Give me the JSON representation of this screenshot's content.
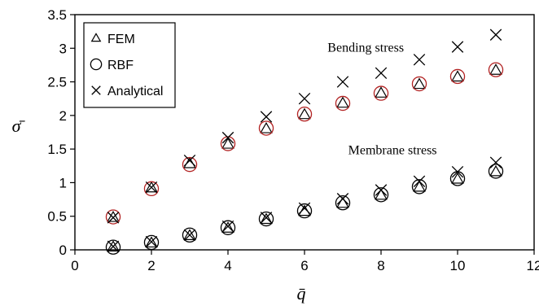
{
  "chart_data": {
    "type": "scatter",
    "xlabel": "q̄",
    "ylabel": "σ̄",
    "xlim": [
      0,
      12
    ],
    "ylim": [
      0,
      3.5
    ],
    "xticks": [
      "0",
      "2",
      "4",
      "6",
      "8",
      "10",
      "12"
    ],
    "yticks": [
      "0",
      "0.5",
      "1",
      "1.5",
      "2",
      "2.5",
      "3",
      "3.5"
    ],
    "grid": false,
    "legend_position": "top-left",
    "legend": [
      {
        "marker": "triangle",
        "label": "FEM"
      },
      {
        "marker": "circle",
        "label": "RBF"
      },
      {
        "marker": "cross",
        "label": "Analytical"
      }
    ],
    "annotations": [
      {
        "text": "Bending stress",
        "x": 7.6,
        "y": 2.95
      },
      {
        "text": "Membrane stress",
        "x": 8.3,
        "y": 1.42
      }
    ],
    "groups": [
      {
        "annotation": "Bending stress",
        "x": [
          1,
          2,
          3,
          4,
          5,
          6,
          7,
          8,
          9,
          10,
          11
        ],
        "series": [
          {
            "marker": "triangle",
            "label": "FEM",
            "values": [
              0.48,
              0.92,
              1.28,
              1.57,
              1.8,
              2.01,
              2.18,
              2.33,
              2.46,
              2.57,
              2.67
            ]
          },
          {
            "marker": "circle",
            "label": "RBF",
            "color": "#b22222",
            "values": [
              0.49,
              0.91,
              1.27,
              1.58,
              1.81,
              2.02,
              2.18,
              2.33,
              2.47,
              2.58,
              2.68
            ]
          },
          {
            "marker": "cross",
            "label": "Analytical",
            "values": [
              0.48,
              0.93,
              1.33,
              1.67,
              1.98,
              2.25,
              2.5,
              2.63,
              2.83,
              3.02,
              3.2
            ]
          }
        ]
      },
      {
        "annotation": "Membrane stress",
        "x": [
          1,
          2,
          3,
          4,
          5,
          6,
          7,
          8,
          9,
          10,
          11
        ],
        "series": [
          {
            "marker": "triangle",
            "label": "FEM",
            "values": [
              0.04,
              0.1,
              0.21,
              0.32,
              0.45,
              0.57,
              0.69,
              0.81,
              0.93,
              1.05,
              1.16
            ]
          },
          {
            "marker": "circle",
            "label": "RBF",
            "color": "#000000",
            "values": [
              0.04,
              0.11,
              0.22,
              0.33,
              0.46,
              0.58,
              0.7,
              0.82,
              0.94,
              1.06,
              1.17
            ]
          },
          {
            "marker": "cross",
            "label": "Analytical",
            "values": [
              0.05,
              0.12,
              0.22,
              0.35,
              0.48,
              0.62,
              0.76,
              0.89,
              1.02,
              1.16,
              1.3
            ]
          }
        ]
      }
    ]
  }
}
